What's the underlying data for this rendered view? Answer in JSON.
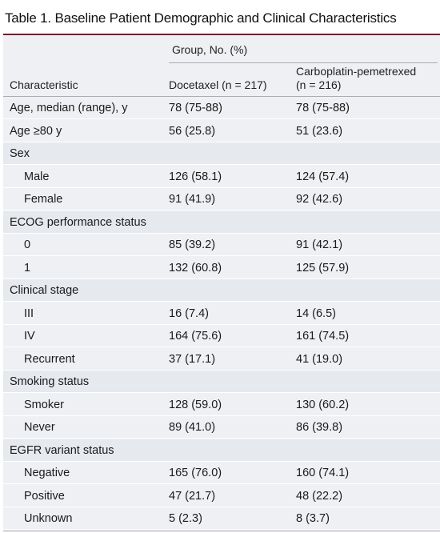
{
  "title": "Table 1. Baseline Patient Demographic and Clinical Characteristics",
  "header": {
    "group_label": "Group, No. (%)",
    "col_characteristic": "Characteristic",
    "col_docetaxel": "Docetaxel (n = 217)",
    "col_carbo_line1": "Carboplatin-pemetrexed",
    "col_carbo_line2": "(n = 216)"
  },
  "rows": [
    {
      "label": "Age, median (range), y",
      "docetaxel": "78 (75-88)",
      "carbo": "78 (75-88)",
      "type": "data",
      "indent": false
    },
    {
      "label": "Age ≥80 y",
      "docetaxel": "56 (25.8)",
      "carbo": "51 (23.6)",
      "type": "data",
      "indent": false
    },
    {
      "label": "Sex",
      "docetaxel": "",
      "carbo": "",
      "type": "section",
      "indent": false
    },
    {
      "label": "Male",
      "docetaxel": "126 (58.1)",
      "carbo": "124 (57.4)",
      "type": "data",
      "indent": true
    },
    {
      "label": "Female",
      "docetaxel": "91 (41.9)",
      "carbo": "92 (42.6)",
      "type": "data",
      "indent": true
    },
    {
      "label": "ECOG performance status",
      "docetaxel": "",
      "carbo": "",
      "type": "section",
      "indent": false
    },
    {
      "label": "0",
      "docetaxel": "85 (39.2)",
      "carbo": "91 (42.1)",
      "type": "data",
      "indent": true
    },
    {
      "label": "1",
      "docetaxel": "132 (60.8)",
      "carbo": "125 (57.9)",
      "type": "data",
      "indent": true
    },
    {
      "label": "Clinical stage",
      "docetaxel": "",
      "carbo": "",
      "type": "section",
      "indent": false
    },
    {
      "label": "III",
      "docetaxel": "16 (7.4)",
      "carbo": "14 (6.5)",
      "type": "data",
      "indent": true
    },
    {
      "label": "IV",
      "docetaxel": "164 (75.6)",
      "carbo": "161 (74.5)",
      "type": "data",
      "indent": true
    },
    {
      "label": "Recurrent",
      "docetaxel": "37 (17.1)",
      "carbo": "41 (19.0)",
      "type": "data",
      "indent": true
    },
    {
      "label": "Smoking status",
      "docetaxel": "",
      "carbo": "",
      "type": "section",
      "indent": false
    },
    {
      "label": "Smoker",
      "docetaxel": "128 (59.0)",
      "carbo": "130 (60.2)",
      "type": "data",
      "indent": true
    },
    {
      "label": "Never",
      "docetaxel": "89 (41.0)",
      "carbo": "86 (39.8)",
      "type": "data",
      "indent": true
    },
    {
      "label": "EGFR variant status",
      "docetaxel": "",
      "carbo": "",
      "type": "section",
      "indent": false
    },
    {
      "label": "Negative",
      "docetaxel": "165 (76.0)",
      "carbo": "160 (74.1)",
      "type": "data",
      "indent": true
    },
    {
      "label": "Positive",
      "docetaxel": "47 (21.7)",
      "carbo": "48 (22.2)",
      "type": "data",
      "indent": true
    },
    {
      "label": "Unknown",
      "docetaxel": "5 (2.3)",
      "carbo": "8 (3.7)",
      "type": "data",
      "indent": true
    }
  ],
  "colors": {
    "title_rule": "#7a1630",
    "table_bg": "#eef0f3",
    "section_bg": "#e6e9ee"
  }
}
